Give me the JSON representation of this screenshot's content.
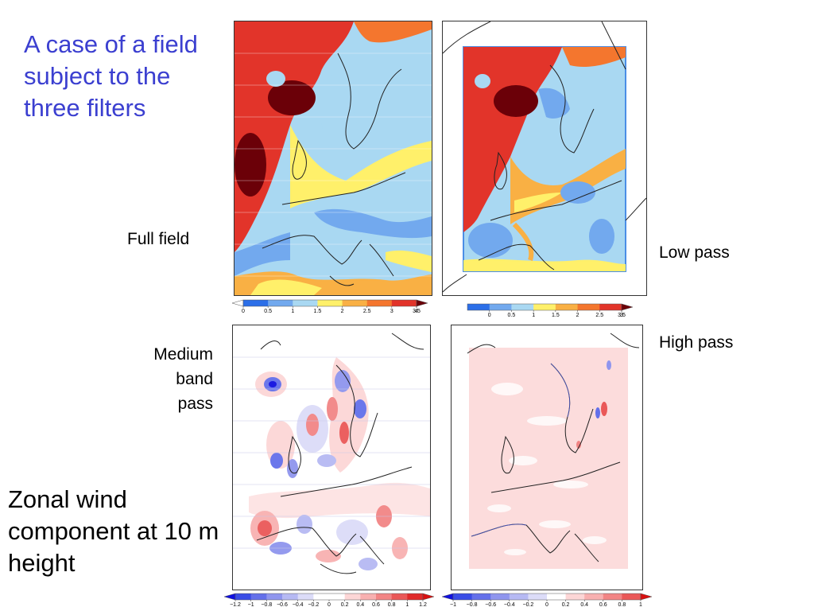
{
  "title": "A case of a field subject to the three filters",
  "note": "Zonal wind component at 10 m height",
  "panels": {
    "full": "Full field",
    "low": "Low pass",
    "medium": [
      "Medium",
      "band",
      "pass"
    ],
    "high": "High pass"
  },
  "colorbars": {
    "top_left": {
      "ticks": [
        "0",
        "0.5",
        "1",
        "1.5",
        "2",
        "2.5",
        "3",
        "3.5",
        "4"
      ],
      "colors": [
        "#ffffff",
        "#2c6fe8",
        "#72a9ee",
        "#a9d8f2",
        "#fff06a",
        "#f9b044",
        "#f4762e",
        "#e2342a",
        "#6b0008"
      ]
    },
    "top_right": {
      "ticks": [
        "0",
        "0.5",
        "1",
        "1.5",
        "2",
        "2.5",
        "3",
        "3.5"
      ],
      "colors": [
        "#2c6fe8",
        "#72a9ee",
        "#a9d8f2",
        "#fff06a",
        "#f9b044",
        "#f4762e",
        "#e2342a",
        "#6b0008"
      ]
    },
    "bottom_left": {
      "ticks": [
        "−1.2",
        "−1",
        "−0.8",
        "−0.6",
        "−0.4",
        "−0.2",
        "0",
        "0.2",
        "0.4",
        "0.6",
        "0.8",
        "1",
        "1.2"
      ],
      "colors": [
        "#1010e0",
        "#3a4de6",
        "#6470ea",
        "#8f95ee",
        "#b6b9f3",
        "#dcdcf8",
        "#ffffff",
        "#ffffff",
        "#fcd6d6",
        "#f8b0b0",
        "#f28585",
        "#ea5858",
        "#e02a2a",
        "#d81010"
      ]
    },
    "bottom_right": {
      "ticks": [
        "−1",
        "−0.8",
        "−0.6",
        "−0.4",
        "−0.2",
        "0",
        "0.2",
        "0.4",
        "0.6",
        "0.8",
        "1"
      ],
      "colors": [
        "#1010e0",
        "#3a4de6",
        "#6470ea",
        "#8f95ee",
        "#b6b9f3",
        "#dcdcf8",
        "#ffffff",
        "#fcd6d6",
        "#f8b0b0",
        "#f28585",
        "#ea5858",
        "#d81010"
      ]
    }
  }
}
